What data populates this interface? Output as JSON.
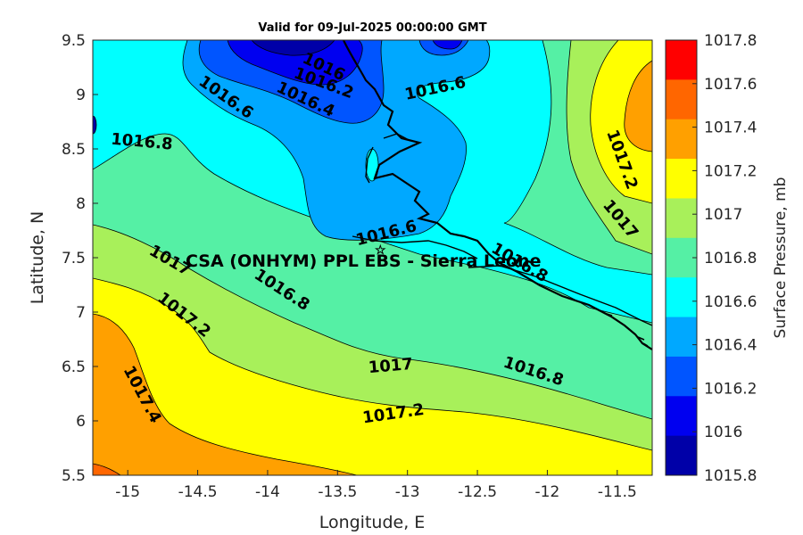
{
  "figure": {
    "title": "Valid for 09-Jul-2025 00:00:00 GMT",
    "overlay_label": "CSA (ONHYM) PPL EBS  - Sierra Leone"
  },
  "axes": {
    "xlabel": "Longitude, E",
    "ylabel": "Latitude, N",
    "xlim": [
      -15.25,
      -11.25
    ],
    "ylim": [
      5.5,
      9.5
    ],
    "xticks": [
      "-15",
      "-14.5",
      "-14",
      "-13.5",
      "-13",
      "-12.5",
      "-12",
      "-11.5"
    ],
    "yticks": [
      "9.5",
      "9",
      "8.5",
      "8",
      "7.5",
      "7",
      "6.5",
      "6",
      "5.5"
    ]
  },
  "colorbar": {
    "label": "Surface Pressure, mb",
    "ticks": [
      "1017.8",
      "1017.6",
      "1017.4",
      "1017.2",
      "1017",
      "1016.8",
      "1016.6",
      "1016.4",
      "1016.2",
      "1016",
      "1015.8"
    ],
    "levels_top_to_bottom": [
      {
        "color": "#ff0000"
      },
      {
        "color": "#ff6600"
      },
      {
        "color": "#ffa000"
      },
      {
        "color": "#ffff00"
      },
      {
        "color": "#a8f05a"
      },
      {
        "color": "#55f0a5"
      },
      {
        "color": "#00ffff"
      },
      {
        "color": "#00a8ff"
      },
      {
        "color": "#0055ff"
      },
      {
        "color": "#0000f0"
      },
      {
        "color": "#0000a8"
      }
    ]
  },
  "contour_labels": [
    {
      "text": "1016",
      "lon": -13.6,
      "lat": 9.25,
      "angle": 25
    },
    {
      "text": "1016.2",
      "lon": -13.6,
      "lat": 9.1,
      "angle": 20
    },
    {
      "text": "1016.4",
      "lon": -13.73,
      "lat": 8.95,
      "angle": 25
    },
    {
      "text": "1016.6",
      "lon": -14.3,
      "lat": 8.97,
      "angle": 35
    },
    {
      "text": "1016.6",
      "lon": -12.8,
      "lat": 9.05,
      "angle": -12
    },
    {
      "text": "1016.8",
      "lon": -14.9,
      "lat": 8.56,
      "angle": 5
    },
    {
      "text": "1017.2",
      "lon": -11.47,
      "lat": 8.4,
      "angle": 70
    },
    {
      "text": "1017",
      "lon": -11.48,
      "lat": 7.85,
      "angle": 50
    },
    {
      "text": "1016.6",
      "lon": -13.15,
      "lat": 7.72,
      "angle": -14
    },
    {
      "text": "1016.8",
      "lon": -12.2,
      "lat": 7.45,
      "angle": 30
    },
    {
      "text": "1017",
      "lon": -14.7,
      "lat": 7.47,
      "angle": 30
    },
    {
      "text": "1016.8",
      "lon": -13.9,
      "lat": 7.2,
      "angle": 33
    },
    {
      "text": "1017.2",
      "lon": -14.6,
      "lat": 6.97,
      "angle": 38
    },
    {
      "text": "1017",
      "lon": -13.12,
      "lat": 6.5,
      "angle": -5
    },
    {
      "text": "1016.8",
      "lon": -12.1,
      "lat": 6.45,
      "angle": 18
    },
    {
      "text": "1017.2",
      "lon": -13.1,
      "lat": 6.06,
      "angle": -8
    },
    {
      "text": "1017.4",
      "lon": -14.9,
      "lat": 6.24,
      "angle": 62
    }
  ]
}
